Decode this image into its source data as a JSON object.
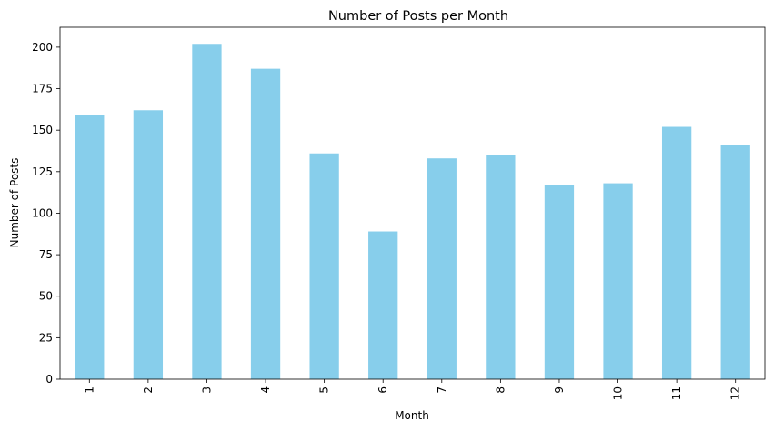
{
  "chart_data": {
    "type": "bar",
    "title": "Number of Posts per Month",
    "xlabel": "Month",
    "ylabel": "Number of Posts",
    "categories": [
      "1",
      "2",
      "3",
      "4",
      "5",
      "6",
      "7",
      "8",
      "9",
      "10",
      "11",
      "12"
    ],
    "values": [
      159,
      162,
      202,
      187,
      136,
      89,
      133,
      135,
      117,
      118,
      152,
      141
    ],
    "ylim": [
      0,
      212
    ],
    "yticks": [
      0,
      25,
      50,
      75,
      100,
      125,
      150,
      175,
      200
    ],
    "bar_color": "#87CEEB",
    "grid": false,
    "legend": false,
    "xtick_rotation": "vertical"
  }
}
